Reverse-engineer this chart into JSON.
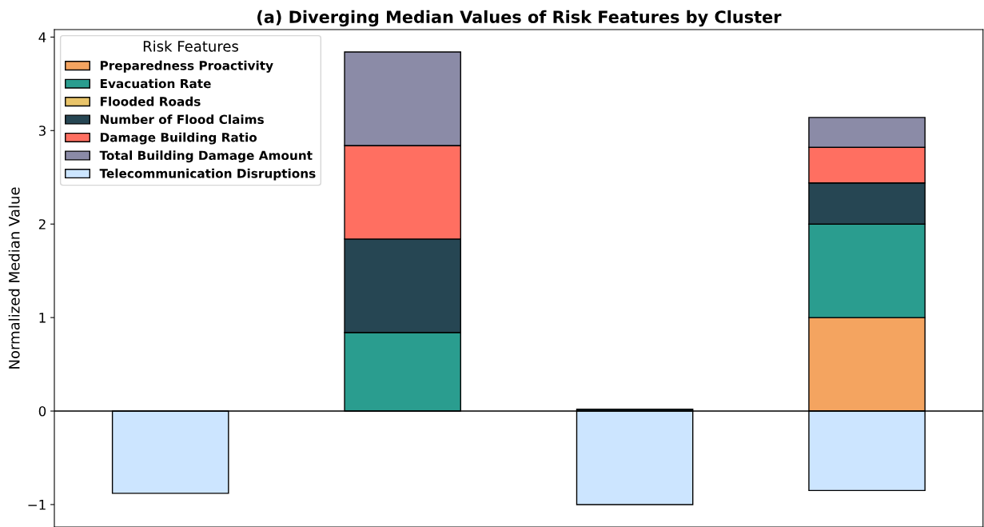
{
  "chart_data": {
    "type": "bar",
    "stacked": true,
    "title": "(a) Diverging Median Values of Risk Features by Cluster",
    "ylabel": "Normalized Median Value",
    "legend_title": "Risk Features",
    "categories": [
      null,
      null,
      null,
      null
    ],
    "series": [
      {
        "name": "Preparedness Proactivity",
        "color": "#f4a460",
        "values": [
          null,
          null,
          null,
          1.0
        ]
      },
      {
        "name": "Evacuation Rate",
        "color": "#2a9d8f",
        "values": [
          null,
          0.84,
          null,
          1.0
        ]
      },
      {
        "name": "Flooded Roads",
        "color": "#e9c46a",
        "values": [
          null,
          null,
          null,
          null
        ]
      },
      {
        "name": "Number of Flood Claims",
        "color": "#264653",
        "values": [
          null,
          1.0,
          0.02,
          0.44
        ]
      },
      {
        "name": "Damage Building Ratio",
        "color": "#ff6f61",
        "values": [
          null,
          1.0,
          null,
          0.38
        ]
      },
      {
        "name": "Total Building Damage Amount",
        "color": "#8b8ba7",
        "values": [
          null,
          1.0,
          null,
          0.32
        ]
      },
      {
        "name": "Telecommunication Disruptions",
        "color": "#cce5ff",
        "values": [
          -0.88,
          null,
          -1.0,
          -0.85
        ]
      }
    ],
    "ylim": [
      -1.24,
      4.08
    ],
    "yticks": [
      {
        "value": -1,
        "label": "−1"
      },
      0,
      1,
      2,
      3,
      4
    ],
    "ref_lines": [
      {
        "axis": "y",
        "value": 0,
        "color": "#000000"
      }
    ],
    "tick_labels": "y",
    "legend": "top left",
    "grid": false
  }
}
